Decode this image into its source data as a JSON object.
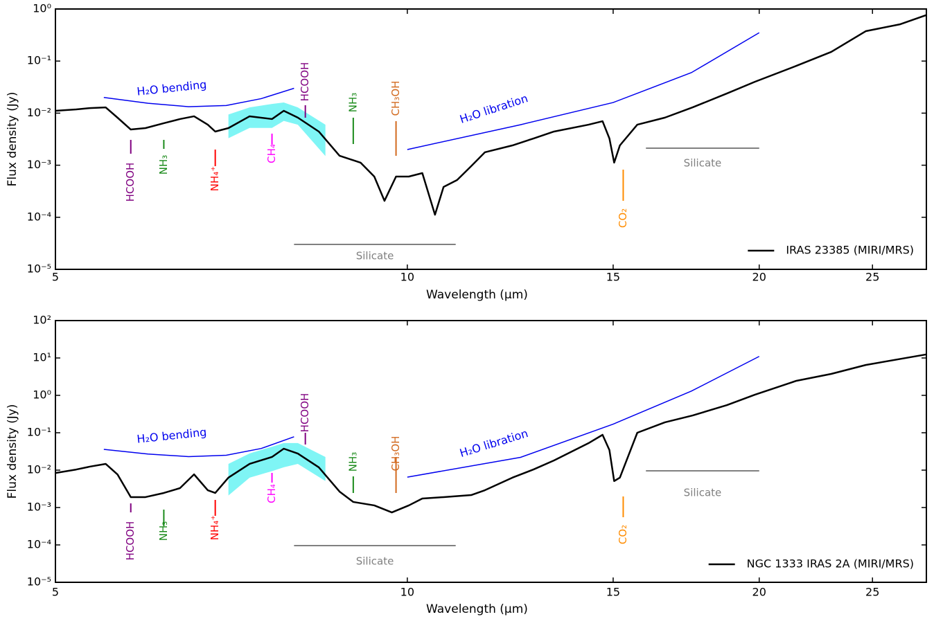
{
  "chart_data": [
    {
      "type": "line",
      "log_x": true,
      "log_y": true,
      "xlabel": "Wavelength (μm)",
      "ylabel": "Flux density (Jy)",
      "xlim": [
        5,
        27.8
      ],
      "xticks": [
        5,
        10,
        15,
        20,
        25
      ],
      "ylim": [
        1e-05,
        1
      ],
      "yticks": [
        {
          "value": 1e-05,
          "label": "10⁻⁵"
        },
        {
          "value": 0.0001,
          "label": "10⁻⁴"
        },
        {
          "value": 0.001,
          "label": "10⁻³"
        },
        {
          "value": 0.01,
          "label": "10⁻²"
        },
        {
          "value": 0.1,
          "label": "10⁻¹"
        },
        {
          "value": 1,
          "label": "10⁰"
        }
      ],
      "legend_position": "lower right",
      "series": [
        {
          "name": "IRAS 23385 (MIRI/MRS)",
          "color": "#000000",
          "x": [
            5.0,
            5.21,
            5.35,
            5.52,
            5.65,
            5.8,
            5.97,
            6.19,
            6.39,
            6.57,
            6.75,
            6.85,
            7.03,
            7.33,
            7.66,
            7.84,
            8.06,
            8.4,
            8.75,
            9.12,
            9.37,
            9.56,
            9.78,
            10.03,
            10.3,
            10.56,
            10.74,
            11.03,
            11.34,
            11.65,
            12.3,
            12.82,
            13.35,
            14.29,
            14.69,
            14.89,
            15.03,
            15.2,
            15.73,
            16.61,
            17.54,
            18.77,
            19.83,
            21.52,
            23.05,
            24.67,
            26.41,
            27.78
          ],
          "values": [
            0.0111,
            0.0118,
            0.0125,
            0.0129,
            0.0082,
            0.00485,
            0.00516,
            0.0064,
            0.0077,
            0.0087,
            0.006,
            0.00443,
            0.00516,
            0.0087,
            0.0077,
            0.0111,
            0.0082,
            0.00443,
            0.00152,
            0.00112,
            0.000605,
            0.000207,
            0.000605,
            0.000605,
            0.000705,
            0.000112,
            0.000382,
            0.000519,
            0.000958,
            0.00177,
            0.0024,
            0.00326,
            0.00443,
            0.006,
            0.007,
            0.00326,
            0.00112,
            0.0024,
            0.006,
            0.0082,
            0.0129,
            0.0239,
            0.04,
            0.081,
            0.15,
            0.375,
            0.51,
            0.76
          ]
        }
      ],
      "band": {
        "color": "#7ff5f5",
        "x": [
          7.03,
          7.33,
          7.66,
          7.84,
          8.06,
          8.51
        ],
        "lower": [
          0.0033,
          0.0052,
          0.0052,
          0.0071,
          0.006,
          0.0015
        ],
        "upper": [
          0.0094,
          0.0129,
          0.015,
          0.016,
          0.0129,
          0.006
        ]
      },
      "curves": [
        {
          "text": "H₂O bending",
          "color": "#0000ee",
          "x": [
            5.5,
            6.0,
            6.5,
            7.0,
            7.5,
            8.0
          ],
          "values": [
            0.02,
            0.0155,
            0.0133,
            0.014,
            0.019,
            0.03
          ]
        },
        {
          "text": "H₂O libration",
          "color": "#0000ee",
          "x": [
            10,
            12.5,
            15,
            17.5,
            20
          ],
          "values": [
            0.002,
            0.006,
            0.016,
            0.06,
            0.35
          ]
        }
      ],
      "annotations": [
        {
          "text": "HCOOH",
          "x": 5.8,
          "color": "#800080"
        },
        {
          "text": "NH₃",
          "x": 6.19,
          "color": "#1a8a1a"
        },
        {
          "text": "NH₄⁺",
          "x": 6.85,
          "color": "#ff0000"
        },
        {
          "text": "CH₄",
          "x": 7.66,
          "color": "#ff00ff"
        },
        {
          "text": "HCOOH",
          "x": 8.18,
          "color": "#800080"
        },
        {
          "text": "NH₃",
          "x": 8.99,
          "color": "#1a8a1a"
        },
        {
          "text": "CH₃OH",
          "x": 9.78,
          "color": "#d2691e"
        },
        {
          "text": "CO₂",
          "x": 15.3,
          "color": "#ff8c00"
        }
      ],
      "silicate": [
        {
          "text": "Silicate",
          "color": "#808080",
          "x": [
            8,
            11
          ]
        },
        {
          "text": "Silicate",
          "color": "#808080",
          "x": [
            16,
            20
          ]
        }
      ]
    },
    {
      "type": "line",
      "log_x": true,
      "log_y": true,
      "xlabel": "Wavelength (μm)",
      "ylabel": "Flux density (Jy)",
      "xlim": [
        5,
        27.8
      ],
      "xticks": [
        5,
        10,
        15,
        20,
        25
      ],
      "ylim": [
        1e-05,
        100
      ],
      "yticks": [
        {
          "value": 1e-05,
          "label": "10⁻⁵"
        },
        {
          "value": 0.0001,
          "label": "10⁻⁴"
        },
        {
          "value": 0.001,
          "label": "10⁻³"
        },
        {
          "value": 0.01,
          "label": "10⁻²"
        },
        {
          "value": 0.1,
          "label": "10⁻¹"
        },
        {
          "value": 1,
          "label": "10⁰"
        },
        {
          "value": 10,
          "label": "10¹"
        },
        {
          "value": 100,
          "label": "10²"
        }
      ],
      "legend_position": "lower right",
      "series": [
        {
          "name": "NGC 1333 IRAS 2A (MIRI/MRS)",
          "color": "#000000",
          "x": [
            5.0,
            5.21,
            5.35,
            5.52,
            5.65,
            5.8,
            5.97,
            6.19,
            6.39,
            6.57,
            6.75,
            6.85,
            7.03,
            7.33,
            7.66,
            7.84,
            8.06,
            8.4,
            8.75,
            8.99,
            9.37,
            9.7,
            10.03,
            10.3,
            10.74,
            11.34,
            11.65,
            12.3,
            12.82,
            13.35,
            14.29,
            14.69,
            14.89,
            15.03,
            15.2,
            15.73,
            16.61,
            17.54,
            18.77,
            19.83,
            21.52,
            23.05,
            24.67,
            27.78
          ],
          "values": [
            0.0084,
            0.0104,
            0.0124,
            0.0147,
            0.0077,
            0.0019,
            0.0019,
            0.00245,
            0.0033,
            0.0077,
            0.0029,
            0.00245,
            0.0063,
            0.0147,
            0.0225,
            0.0375,
            0.0278,
            0.0119,
            0.00267,
            0.00141,
            0.00114,
            0.00074,
            0.00114,
            0.00174,
            0.0019,
            0.00215,
            0.0029,
            0.0063,
            0.0104,
            0.0182,
            0.0527,
            0.088,
            0.0344,
            0.0051,
            0.0063,
            0.1,
            0.19,
            0.29,
            0.55,
            1.04,
            2.45,
            3.75,
            6.5,
            12.4
          ]
        }
      ],
      "band": {
        "color": "#7ff5f5",
        "x": [
          7.03,
          7.33,
          7.66,
          7.84,
          8.06,
          8.51
        ],
        "lower": [
          0.0021,
          0.0063,
          0.0094,
          0.0119,
          0.0147,
          0.0051
        ],
        "upper": [
          0.0147,
          0.028,
          0.0422,
          0.053,
          0.053,
          0.0225
        ]
      },
      "curves": [
        {
          "text": "H₂O bending",
          "color": "#0000ee",
          "x": [
            5.5,
            6.0,
            6.5,
            7.0,
            7.5,
            8.0
          ],
          "values": [
            0.036,
            0.027,
            0.023,
            0.025,
            0.038,
            0.078
          ]
        },
        {
          "text": "H₂O libration",
          "color": "#0000ee",
          "x": [
            10,
            12.5,
            15,
            17.5,
            20
          ],
          "values": [
            0.0065,
            0.022,
            0.17,
            1.3,
            11
          ]
        }
      ],
      "annotations": [
        {
          "text": "HCOOH",
          "x": 5.8,
          "color": "#800080"
        },
        {
          "text": "NH₃",
          "x": 6.19,
          "color": "#1a8a1a"
        },
        {
          "text": "NH₄⁺",
          "x": 6.85,
          "color": "#ff0000"
        },
        {
          "text": "CH₄",
          "x": 7.66,
          "color": "#ff00ff"
        },
        {
          "text": "HCOOH",
          "x": 8.18,
          "color": "#800080"
        },
        {
          "text": "NH₃",
          "x": 8.99,
          "color": "#1a8a1a"
        },
        {
          "text": "CH₃OH",
          "x": 9.78,
          "color": "#d2691e"
        },
        {
          "text": "CO₂",
          "x": 15.3,
          "color": "#ff8c00"
        }
      ],
      "silicate": [
        {
          "text": "Silicate",
          "color": "#808080",
          "x": [
            8,
            11
          ]
        },
        {
          "text": "Silicate",
          "color": "#808080",
          "x": [
            16,
            20
          ]
        }
      ]
    }
  ]
}
